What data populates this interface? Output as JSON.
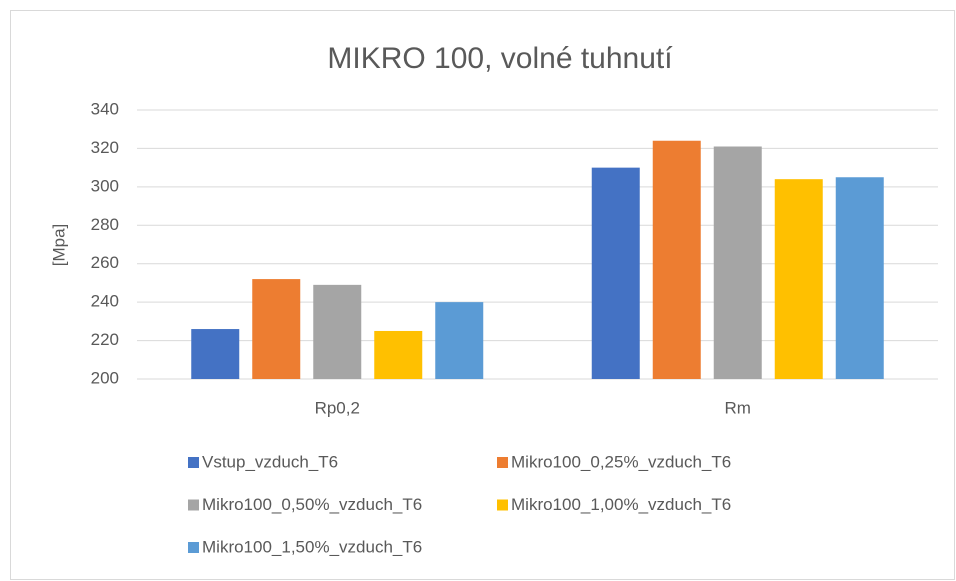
{
  "chart_data": {
    "type": "bar",
    "title": "MIKRO 100, volné tuhnutí",
    "y_label": "[Mpa]",
    "categories": [
      "Rp0,2",
      "Rm"
    ],
    "series": [
      {
        "name": "Vstup_vzduch_T6",
        "color": "#4472c4",
        "values": [
          226,
          310
        ]
      },
      {
        "name": "Mikro100_0,25%_vzduch_T6",
        "color": "#ed7d31",
        "values": [
          252,
          324
        ]
      },
      {
        "name": "Mikro100_0,50%_vzduch_T6",
        "color": "#a5a5a5",
        "values": [
          249,
          321
        ]
      },
      {
        "name": "Mikro100_1,00%_vzduch_T6",
        "color": "#ffc000",
        "values": [
          225,
          304
        ]
      },
      {
        "name": "Mikro100_1,50%_vzduch_T6",
        "color": "#5b9bd5",
        "values": [
          240,
          305
        ]
      }
    ],
    "ylim": [
      200,
      340
    ],
    "yticks": [
      200,
      220,
      240,
      260,
      280,
      300,
      320,
      340
    ],
    "grid": true,
    "legend": "bottom"
  }
}
